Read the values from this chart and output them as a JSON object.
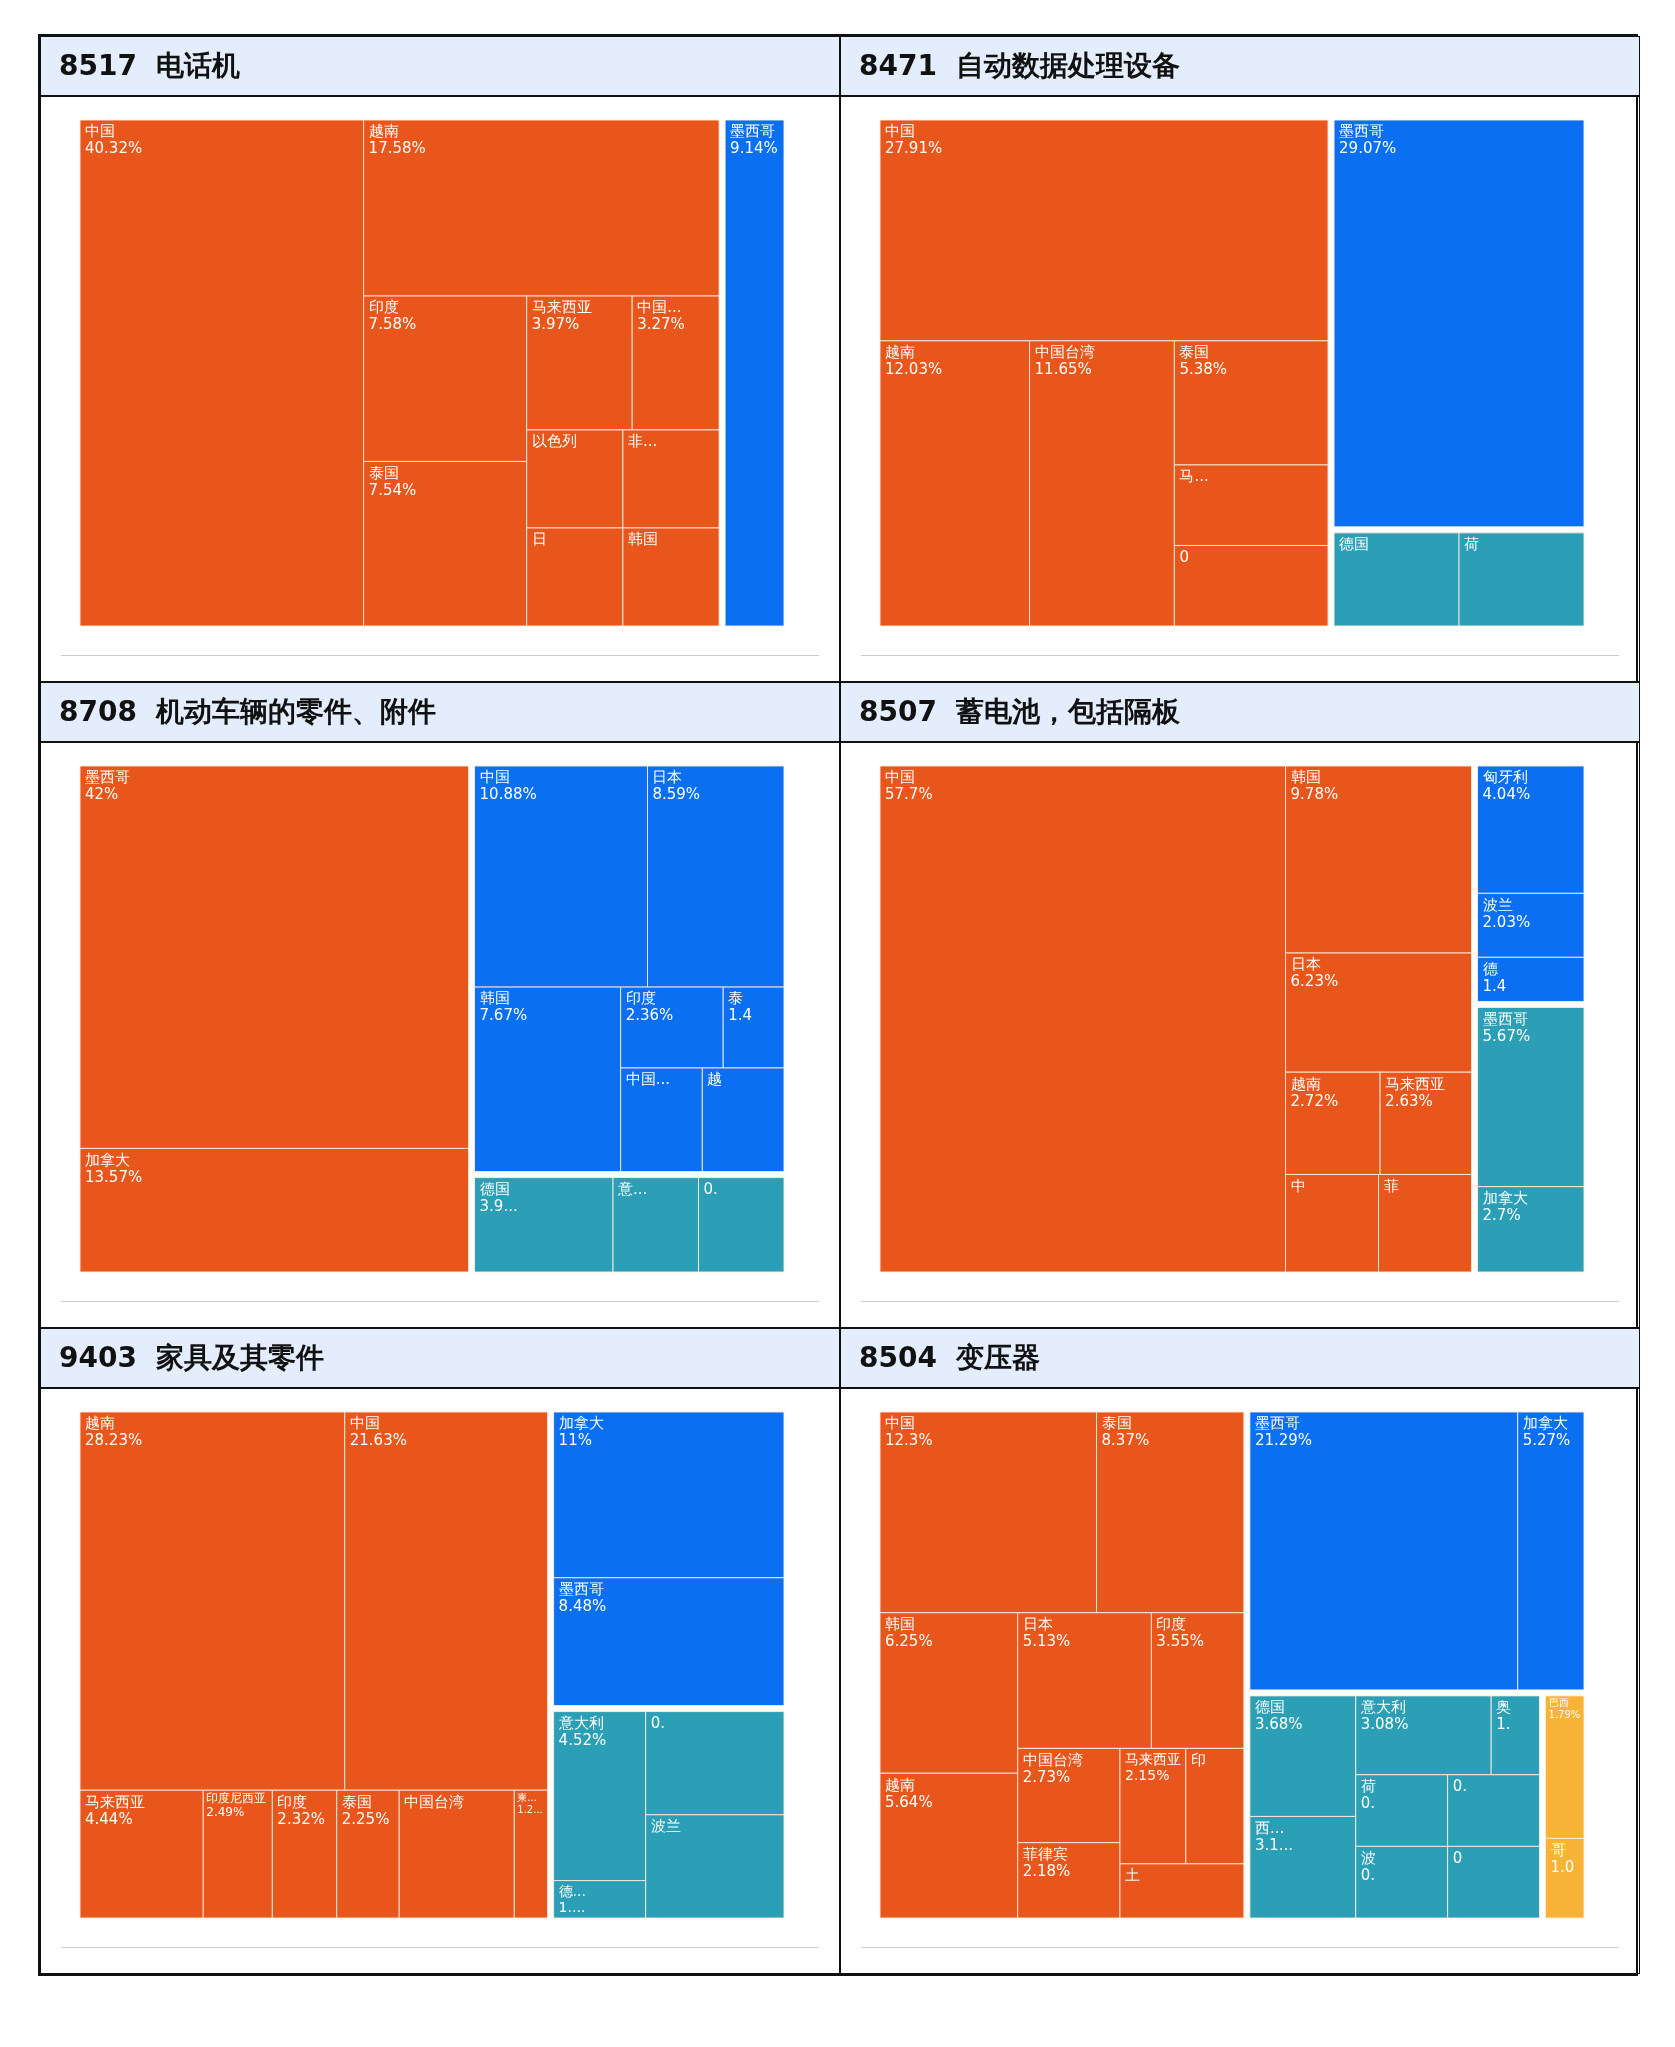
{
  "chart_data": [
    {
      "type": "other",
      "title": "8517  电话机",
      "categories": [
        "中国",
        "越南",
        "印度",
        "泰国",
        "马来西亚",
        "中国...",
        "以色列",
        "非...",
        "日",
        "韩国",
        "墨西哥"
      ],
      "values": [
        40.32,
        17.58,
        7.58,
        7.54,
        3.97,
        3.27,
        null,
        null,
        null,
        null,
        9.14
      ],
      "value_labels": [
        "40.32%",
        "17.58%",
        "7.58%",
        "7.54%",
        "3.97%",
        "3.27%",
        null,
        null,
        null,
        null,
        "9.14%"
      ],
      "colors": [
        "#e8561c",
        "#e8561c",
        "#e8561c",
        "#e8561c",
        "#e8561c",
        "#e8561c",
        "#e8561c",
        "#e8561c",
        "#e8561c",
        "#e8561c",
        "#0a6ff0"
      ]
    },
    {
      "type": "other",
      "title": "8471  自动数据处理设备",
      "categories": [
        "中国",
        "越南",
        "中国台湾",
        "泰国",
        "马...",
        null,
        "墨西哥",
        "德国",
        "荷"
      ],
      "values": [
        27.91,
        12.03,
        11.65,
        5.38,
        null,
        null,
        29.07,
        null,
        null
      ],
      "value_labels": [
        "27.91%",
        "12.03%",
        "11.65%",
        "5.38%",
        null,
        "0",
        "29.07%",
        null,
        null
      ],
      "colors": [
        "#e8561c",
        "#e8561c",
        "#e8561c",
        "#e8561c",
        "#e8561c",
        "#e8561c",
        "#0a6ff0",
        "#2a9fb5",
        "#2a9fb5"
      ]
    },
    {
      "type": "other",
      "title": "8708  机动车辆的零件、附件",
      "categories": [
        "墨西哥",
        "加拿大",
        "中国",
        "日本",
        "韩国",
        "印度",
        "泰",
        "中国...",
        "越",
        "德国",
        "意...",
        null
      ],
      "values": [
        42,
        13.57,
        10.88,
        8.59,
        7.67,
        2.36,
        1.4,
        null,
        null,
        3.9,
        null,
        null
      ],
      "value_labels": [
        "42%",
        "13.57%",
        "10.88%",
        "8.59%",
        "7.67%",
        "2.36%",
        "1.4",
        null,
        null,
        "3.9...",
        null,
        "0."
      ],
      "colors": [
        "#e8561c",
        "#e8561c",
        "#0a6ff0",
        "#0a6ff0",
        "#0a6ff0",
        "#0a6ff0",
        "#0a6ff0",
        "#0a6ff0",
        "#0a6ff0",
        "#2a9fb5",
        "#2a9fb5",
        "#2a9fb5"
      ]
    },
    {
      "type": "other",
      "title": "8507  蓄电池，包括隔板",
      "categories": [
        "中国",
        "韩国",
        "日本",
        "越南",
        "马来西亚",
        "中",
        "菲",
        "匈牙利",
        "波兰",
        "德",
        "墨西哥",
        "加拿大"
      ],
      "values": [
        57.7,
        9.78,
        6.23,
        2.72,
        2.63,
        null,
        null,
        4.04,
        2.03,
        1.4,
        5.67,
        2.7
      ],
      "value_labels": [
        "57.7%",
        "9.78%",
        "6.23%",
        "2.72%",
        "2.63%",
        null,
        null,
        "4.04%",
        "2.03%",
        "1.4",
        "5.67%",
        "2.7%"
      ],
      "colors": [
        "#e8561c",
        "#e8561c",
        "#e8561c",
        "#e8561c",
        "#e8561c",
        "#e8561c",
        "#e8561c",
        "#0a6ff0",
        "#0a6ff0",
        "#0a6ff0",
        "#2a9fb5",
        "#2a9fb5"
      ]
    },
    {
      "type": "other",
      "title": "9403  家具及其零件",
      "categories": [
        "越南",
        "中国",
        "马来西亚",
        "印度尼西亚",
        "印度",
        "泰国",
        "中国台湾",
        "柬...",
        "加拿大",
        "墨西哥",
        "意大利",
        "德...",
        null,
        "波兰"
      ],
      "values": [
        28.23,
        21.63,
        4.44,
        2.49,
        2.32,
        2.25,
        null,
        1.2,
        11,
        8.48,
        4.52,
        1.0,
        null,
        null
      ],
      "value_labels": [
        "28.23%",
        "21.63%",
        "4.44%",
        "2.49%",
        "2.32%",
        "2.25%",
        null,
        "1.2...",
        "11%",
        "8.48%",
        "4.52%",
        "1....",
        "0.",
        null
      ],
      "colors": [
        "#e8561c",
        "#e8561c",
        "#e8561c",
        "#e8561c",
        "#e8561c",
        "#e8561c",
        "#e8561c",
        "#e8561c",
        "#0a6ff0",
        "#0a6ff0",
        "#2a9fb5",
        "#2a9fb5",
        "#2a9fb5",
        "#2a9fb5"
      ]
    },
    {
      "type": "other",
      "title": "8504  变压器",
      "categories": [
        "中国",
        "泰国",
        "韩国",
        "越南",
        "日本",
        "印度",
        "中国台湾",
        "菲律宾",
        "马来西亚",
        "印",
        "土",
        "墨西哥",
        "加拿大",
        "德国",
        "西...",
        "意大利",
        "奥",
        "荷",
        "波",
        null,
        null,
        "巴西",
        "哥"
      ],
      "values": [
        12.3,
        8.37,
        6.25,
        5.64,
        5.13,
        3.55,
        2.73,
        2.18,
        2.15,
        null,
        null,
        21.29,
        5.27,
        3.68,
        3.1,
        3.08,
        1.1,
        null,
        null,
        null,
        null,
        1.79,
        1.0
      ],
      "value_labels": [
        "12.3%",
        "8.37%",
        "6.25%",
        "5.64%",
        "5.13%",
        "3.55%",
        "2.73%",
        "2.18%",
        "2.15%",
        null,
        null,
        "21.29%",
        "5.27%",
        "3.68%",
        "3.1...",
        "3.08%",
        "1.",
        "0.",
        "0.",
        "0.",
        "0",
        "1.79%",
        "1.0"
      ],
      "colors": [
        "#e8561c",
        "#e8561c",
        "#e8561c",
        "#e8561c",
        "#e8561c",
        "#e8561c",
        "#e8561c",
        "#e8561c",
        "#e8561c",
        "#e8561c",
        "#e8561c",
        "#0a6ff0",
        "#0a6ff0",
        "#2a9fb5",
        "#2a9fb5",
        "#2a9fb5",
        "#2a9fb5",
        "#2a9fb5",
        "#2a9fb5",
        "#2a9fb5",
        "#2a9fb5",
        "#f7b336",
        "#f7b336"
      ]
    }
  ]
}
